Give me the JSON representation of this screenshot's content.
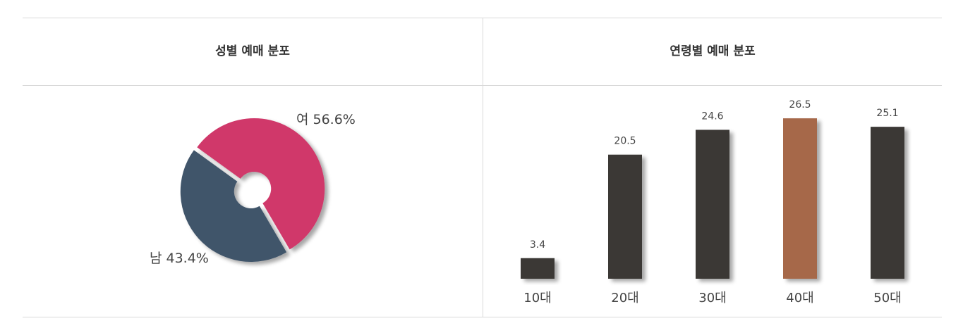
{
  "chart_data": [
    {
      "type": "pie",
      "title": "성별 예매 분포",
      "categories": [
        "여",
        "남"
      ],
      "values": [
        56.6,
        43.4
      ],
      "value_labels": [
        "56.6%",
        "43.4%"
      ],
      "colors": [
        "#d0386a",
        "#41546b"
      ]
    },
    {
      "type": "bar",
      "title": "연령별 예매 분포",
      "categories": [
        "10대",
        "20대",
        "30대",
        "40대",
        "50대"
      ],
      "values": [
        3.4,
        20.5,
        24.6,
        26.5,
        25.1
      ],
      "colors": [
        "#3a3735",
        "#3a3735",
        "#3a3735",
        "#a6674a",
        "#3a3735"
      ]
    }
  ]
}
